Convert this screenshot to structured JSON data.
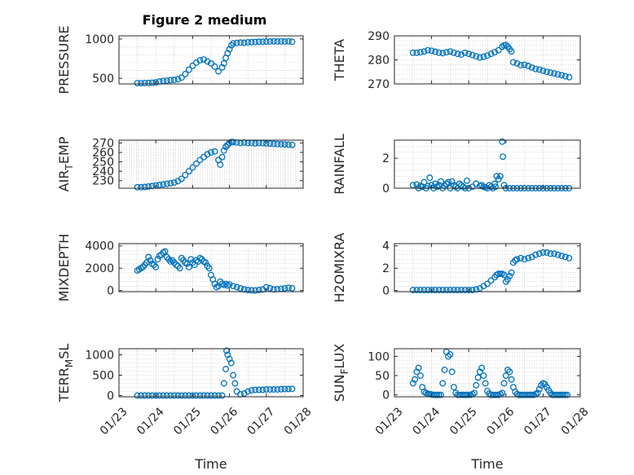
{
  "figure": {
    "title": "Figure 2 medium"
  },
  "colors": {
    "marker": "#0072bd",
    "axis": "#262626",
    "grid": "#bbbbbb",
    "background": "#ffffff"
  },
  "chart_data": [
    {
      "type": "scatter",
      "ylabel": "PRESSURE",
      "xlabel": "",
      "x_tick_labels": [],
      "y_ticks": [
        500,
        1000
      ],
      "y_tick_labels": [
        "500",
        "1000"
      ],
      "ylim": [
        430,
        1040
      ],
      "grid": true,
      "x": [
        23.5,
        23.6,
        23.7,
        23.8,
        23.9,
        24.0,
        24.1,
        24.2,
        24.3,
        24.4,
        24.5,
        24.6,
        24.7,
        24.8,
        24.9,
        25.0,
        25.1,
        25.2,
        25.3,
        25.4,
        25.5,
        25.6,
        25.7,
        25.8,
        25.85,
        25.9,
        25.95,
        26.0,
        26.05,
        26.1,
        26.2,
        26.3,
        26.4,
        26.5,
        26.6,
        26.7,
        26.8,
        26.9,
        27.0,
        27.1,
        27.2,
        27.3,
        27.4,
        27.5,
        27.6,
        27.7
      ],
      "y": [
        440,
        440,
        441,
        442,
        445,
        450,
        460,
        468,
        472,
        478,
        482,
        490,
        510,
        555,
        610,
        660,
        700,
        730,
        740,
        715,
        690,
        650,
        590,
        640,
        690,
        760,
        820,
        870,
        920,
        945,
        950,
        955,
        952,
        958,
        960,
        962,
        965,
        965,
        966,
        968,
        970,
        968,
        970,
        968,
        970,
        965
      ]
    },
    {
      "type": "scatter",
      "ylabel": "THETA",
      "xlabel": "",
      "x_tick_labels": [],
      "y_ticks": [
        270,
        280,
        290
      ],
      "y_tick_labels": [
        "270",
        "280",
        "290"
      ],
      "ylim": [
        270,
        290
      ],
      "grid": true,
      "x": [
        23.5,
        23.6,
        23.7,
        23.8,
        23.9,
        24.0,
        24.1,
        24.2,
        24.3,
        24.4,
        24.5,
        24.6,
        24.7,
        24.8,
        24.9,
        25.0,
        25.1,
        25.2,
        25.3,
        25.4,
        25.5,
        25.6,
        25.7,
        25.8,
        25.9,
        25.95,
        26.0,
        26.05,
        26.1,
        26.15,
        26.2,
        26.3,
        26.4,
        26.5,
        26.6,
        26.7,
        26.8,
        26.9,
        27.0,
        27.1,
        27.2,
        27.3,
        27.4,
        27.5,
        27.6,
        27.7
      ],
      "y": [
        283,
        283,
        283.2,
        283.5,
        284,
        283.8,
        283.4,
        283.0,
        282.8,
        283.2,
        283.5,
        283.0,
        282.5,
        282.2,
        283.0,
        282.5,
        282.0,
        281.5,
        281.0,
        281.3,
        281.8,
        282.5,
        283.2,
        284.0,
        285.5,
        286.0,
        286.2,
        285.5,
        284.5,
        283.5,
        279.0,
        278.5,
        277.8,
        278.0,
        277.5,
        276.8,
        276.2,
        276.0,
        275.5,
        275.0,
        274.7,
        274.4,
        274.0,
        273.6,
        273.2,
        272.8
      ]
    },
    {
      "type": "scatter",
      "ylabel": "AIR_TEMP",
      "xlabel": "",
      "x_tick_labels": [],
      "y_ticks": [
        230,
        240,
        250,
        260,
        270
      ],
      "y_tick_labels": [
        "230",
        "240",
        "250",
        "260",
        "270"
      ],
      "ylim": [
        222,
        273
      ],
      "grid": true,
      "x": [
        23.5,
        23.6,
        23.7,
        23.8,
        23.9,
        24.0,
        24.1,
        24.2,
        24.3,
        24.4,
        24.5,
        24.6,
        24.7,
        24.8,
        24.9,
        25.0,
        25.1,
        25.2,
        25.3,
        25.4,
        25.5,
        25.6,
        25.7,
        25.75,
        25.8,
        25.85,
        25.9,
        25.95,
        26.0,
        26.05,
        26.1,
        26.2,
        26.3,
        26.4,
        26.5,
        26.6,
        26.7,
        26.8,
        26.9,
        27.0,
        27.1,
        27.2,
        27.3,
        27.4,
        27.5,
        27.6,
        27.7
      ],
      "y": [
        223,
        223,
        223.3,
        223.8,
        224.3,
        224.9,
        225.5,
        226,
        226.6,
        227.2,
        228,
        229.5,
        232,
        236,
        240,
        244,
        248,
        252,
        255,
        258,
        260,
        261,
        252,
        247,
        255,
        262,
        266,
        268,
        270,
        271,
        271,
        270.5,
        270,
        270.5,
        270,
        270,
        269.5,
        270,
        269.8,
        269.5,
        269.3,
        269,
        268.8,
        268.6,
        268.4,
        268.2,
        268
      ]
    },
    {
      "type": "scatter",
      "ylabel": "RAINFALL",
      "xlabel": "",
      "x_tick_labels": [],
      "y_ticks": [
        0,
        2
      ],
      "y_tick_labels": [
        "0",
        "2"
      ],
      "ylim": [
        0,
        3.2
      ],
      "grid": true,
      "x": [
        23.5,
        23.6,
        23.65,
        23.7,
        23.75,
        23.8,
        23.85,
        23.9,
        23.95,
        24.0,
        24.05,
        24.1,
        24.15,
        24.2,
        24.25,
        24.3,
        24.35,
        24.4,
        24.45,
        24.5,
        24.55,
        24.6,
        24.65,
        24.7,
        24.75,
        24.8,
        24.85,
        24.9,
        24.95,
        25.0,
        25.1,
        25.2,
        25.3,
        25.35,
        25.4,
        25.45,
        25.5,
        25.55,
        25.6,
        25.65,
        25.7,
        25.72,
        25.75,
        25.8,
        25.85,
        25.9,
        25.92,
        25.95,
        26.0,
        26.1,
        26.2,
        26.3,
        26.4,
        26.5,
        26.6,
        26.7,
        26.8,
        26.9,
        27.0,
        27.1,
        27.2,
        27.3,
        27.4,
        27.5,
        27.6,
        27.7
      ],
      "y": [
        0.2,
        0.25,
        0,
        0.15,
        0.1,
        0.4,
        0,
        0.15,
        0.7,
        0.2,
        0,
        0.3,
        0.1,
        0.2,
        0.45,
        0,
        0.15,
        0.3,
        0.4,
        0,
        0.45,
        0.2,
        0.1,
        0,
        0.3,
        0.2,
        0.1,
        0,
        0.5,
        0,
        0.1,
        0.3,
        0.15,
        0.2,
        0.1,
        0.05,
        0,
        0.2,
        0.1,
        0,
        0.3,
        0.1,
        0.8,
        0.6,
        0.8,
        3.1,
        2.1,
        0.2,
        0,
        0,
        0,
        0,
        0,
        0,
        0,
        0,
        0,
        0,
        0,
        0,
        0,
        0,
        0,
        0,
        0,
        0
      ]
    },
    {
      "type": "scatter",
      "ylabel": "MIXDEPTH",
      "xlabel": "",
      "x_tick_labels": [],
      "y_ticks": [
        0,
        2000,
        4000
      ],
      "y_tick_labels": [
        "0",
        "2000",
        "4000"
      ],
      "ylim": [
        -100,
        4200
      ],
      "grid": true,
      "x": [
        23.5,
        23.55,
        23.6,
        23.65,
        23.7,
        23.75,
        23.8,
        23.85,
        23.9,
        23.95,
        24.0,
        24.05,
        24.1,
        24.15,
        24.2,
        24.25,
        24.3,
        24.35,
        24.4,
        24.45,
        24.5,
        24.55,
        24.6,
        24.65,
        24.7,
        24.75,
        24.8,
        24.85,
        24.9,
        24.95,
        25.0,
        25.05,
        25.1,
        25.15,
        25.2,
        25.25,
        25.3,
        25.35,
        25.4,
        25.45,
        25.5,
        25.55,
        25.6,
        25.65,
        25.7,
        25.75,
        25.8,
        25.85,
        25.9,
        25.95,
        26.0,
        26.1,
        26.2,
        26.3,
        26.4,
        26.5,
        26.6,
        26.7,
        26.8,
        26.9,
        27.0,
        27.1,
        27.2,
        27.3,
        27.4,
        27.5,
        27.6,
        27.7
      ],
      "y": [
        1800,
        1900,
        2000,
        2100,
        2300,
        2500,
        3000,
        2700,
        2400,
        2300,
        2100,
        2800,
        3100,
        3200,
        3400,
        3500,
        3000,
        2800,
        2600,
        2700,
        2500,
        2300,
        2200,
        2000,
        2900,
        2700,
        2500,
        2400,
        2100,
        2800,
        2500,
        2300,
        2700,
        2600,
        2900,
        2800,
        2600,
        2500,
        2200,
        2000,
        1400,
        1000,
        600,
        300,
        400,
        800,
        600,
        500,
        600,
        450,
        550,
        400,
        300,
        200,
        100,
        50,
        20,
        10,
        50,
        100,
        300,
        200,
        100,
        120,
        150,
        200,
        250,
        200
      ]
    },
    {
      "type": "scatter",
      "ylabel": "H2OMIXRA",
      "xlabel": "",
      "x_tick_labels": [],
      "y_ticks": [
        0,
        2,
        4
      ],
      "y_tick_labels": [
        "0",
        "2",
        "4"
      ],
      "ylim": [
        -0.1,
        4.2
      ],
      "grid": true,
      "x": [
        23.5,
        23.6,
        23.7,
        23.8,
        23.9,
        24.0,
        24.1,
        24.2,
        24.3,
        24.4,
        24.5,
        24.6,
        24.7,
        24.8,
        24.9,
        25.0,
        25.1,
        25.2,
        25.3,
        25.4,
        25.5,
        25.6,
        25.7,
        25.75,
        25.8,
        25.85,
        25.9,
        25.95,
        26.0,
        26.05,
        26.1,
        26.15,
        26.2,
        26.25,
        26.3,
        26.4,
        26.5,
        26.6,
        26.7,
        26.8,
        26.9,
        27.0,
        27.1,
        27.2,
        27.3,
        27.4,
        27.5,
        27.6,
        27.7
      ],
      "y": [
        0.05,
        0.05,
        0.05,
        0.05,
        0.05,
        0.05,
        0.05,
        0.05,
        0.05,
        0.05,
        0.05,
        0.05,
        0.05,
        0.05,
        0.05,
        0.05,
        0.05,
        0.1,
        0.2,
        0.4,
        0.6,
        0.9,
        1.2,
        1.4,
        1.5,
        1.5,
        1.5,
        1.4,
        0.8,
        1.0,
        1.3,
        1.6,
        2.5,
        2.7,
        2.8,
        2.9,
        2.8,
        2.9,
        3.0,
        3.2,
        3.3,
        3.4,
        3.4,
        3.3,
        3.3,
        3.2,
        3.1,
        3.0,
        2.9
      ]
    },
    {
      "type": "scatter",
      "ylabel": "TERR_MSL",
      "xlabel": "Time",
      "x_ticks": [
        23,
        24,
        25,
        26,
        27,
        28
      ],
      "x_tick_labels": [
        "01/23",
        "01/24",
        "01/25",
        "01/26",
        "01/27",
        "01/28"
      ],
      "xlim": [
        23,
        28
      ],
      "y_ticks": [
        0,
        500,
        1000
      ],
      "y_tick_labels": [
        "0",
        "500",
        "1000"
      ],
      "ylim": [
        -30,
        1150
      ],
      "grid": true,
      "x": [
        23.5,
        23.6,
        23.7,
        23.8,
        23.9,
        24.0,
        24.1,
        24.2,
        24.3,
        24.4,
        24.5,
        24.6,
        24.7,
        24.8,
        24.9,
        25.0,
        25.1,
        25.2,
        25.3,
        25.4,
        25.5,
        25.6,
        25.7,
        25.8,
        25.85,
        25.9,
        25.92,
        25.95,
        26.0,
        26.05,
        26.1,
        26.15,
        26.2,
        26.3,
        26.4,
        26.5,
        26.6,
        26.7,
        26.8,
        26.9,
        27.0,
        27.1,
        27.2,
        27.3,
        27.4,
        27.5,
        27.6,
        27.7
      ],
      "y": [
        0,
        0,
        0,
        0,
        0,
        0,
        0,
        0,
        0,
        0,
        0,
        0,
        0,
        0,
        0,
        0,
        0,
        0,
        0,
        0,
        0,
        0,
        0,
        0,
        300,
        650,
        1100,
        1000,
        900,
        800,
        500,
        300,
        100,
        30,
        50,
        100,
        130,
        140,
        140,
        140,
        150,
        150,
        150,
        150,
        155,
        160,
        160,
        165
      ]
    },
    {
      "type": "scatter",
      "ylabel": "SUN_FLUX",
      "xlabel": "Time",
      "x_ticks": [
        23,
        24,
        25,
        26,
        27,
        28
      ],
      "x_tick_labels": [
        "01/23",
        "01/24",
        "01/25",
        "01/26",
        "01/27",
        "01/28"
      ],
      "xlim": [
        23,
        28
      ],
      "y_ticks": [
        0,
        50,
        100
      ],
      "y_tick_labels": [
        "0",
        "50",
        "100"
      ],
      "ylim": [
        -5,
        120
      ],
      "grid": true,
      "x": [
        23.5,
        23.55,
        23.6,
        23.65,
        23.7,
        23.75,
        23.8,
        23.85,
        23.9,
        23.95,
        24.0,
        24.05,
        24.1,
        24.15,
        24.2,
        24.25,
        24.3,
        24.35,
        24.4,
        24.45,
        24.5,
        24.55,
        24.6,
        24.65,
        24.7,
        24.75,
        24.8,
        24.85,
        24.9,
        24.95,
        25.0,
        25.05,
        25.1,
        25.15,
        25.2,
        25.25,
        25.3,
        25.35,
        25.4,
        25.45,
        25.5,
        25.55,
        25.6,
        25.65,
        25.7,
        25.75,
        25.8,
        25.85,
        25.9,
        25.95,
        26.0,
        26.05,
        26.1,
        26.15,
        26.2,
        26.25,
        26.3,
        26.35,
        26.4,
        26.45,
        26.5,
        26.55,
        26.6,
        26.65,
        26.7,
        26.75,
        26.8,
        26.85,
        26.9,
        26.95,
        27.0,
        27.05,
        27.1,
        27.15,
        27.2,
        27.25,
        27.3,
        27.35,
        27.4,
        27.45,
        27.5,
        27.55,
        27.6,
        27.65
      ],
      "y": [
        30,
        40,
        60,
        70,
        50,
        20,
        8,
        5,
        3,
        2,
        1,
        0,
        0,
        0,
        0,
        0,
        30,
        65,
        112,
        100,
        105,
        60,
        20,
        5,
        0,
        0,
        0,
        0,
        0,
        0,
        0,
        0,
        2,
        5,
        25,
        45,
        60,
        70,
        50,
        30,
        10,
        3,
        0,
        0,
        0,
        0,
        0,
        2,
        5,
        30,
        50,
        65,
        60,
        40,
        20,
        8,
        2,
        0,
        0,
        0,
        0,
        0,
        0,
        0,
        0,
        0,
        2,
        5,
        15,
        25,
        30,
        28,
        20,
        12,
        5,
        0,
        0,
        0,
        0,
        0,
        0,
        0,
        0,
        0
      ]
    }
  ]
}
